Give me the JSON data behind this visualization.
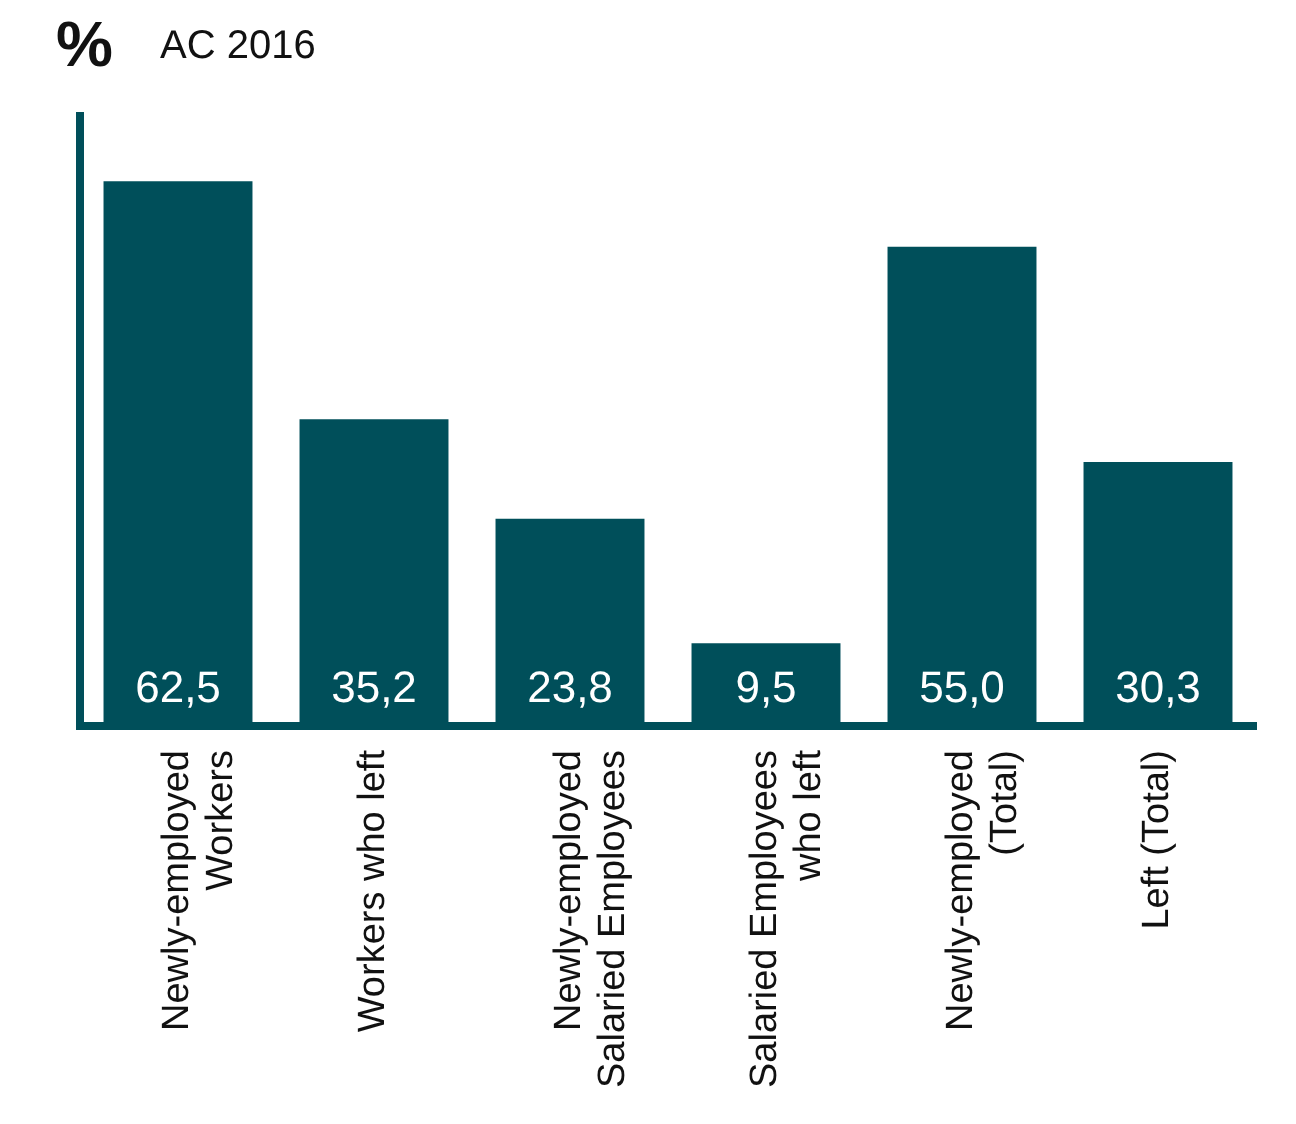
{
  "chart_data": {
    "type": "bar",
    "title": "AC 2016",
    "ylabel": "%",
    "categories": [
      "Newly-employed\nWorkers",
      "Workers who left",
      "Newly-employed\nSalaried Employees",
      "Salaried Employees\nwho left",
      "Newly-employed\n(Total)",
      "Left (Total)"
    ],
    "values": [
      62.5,
      35.2,
      23.8,
      9.5,
      55.0,
      30.3
    ],
    "value_labels": [
      "62,5",
      "35,2",
      "23,8",
      "9,5",
      "55,0",
      "30,3"
    ],
    "color": "#004f5a",
    "grid": false,
    "legend": false,
    "tick_labels": "x"
  }
}
